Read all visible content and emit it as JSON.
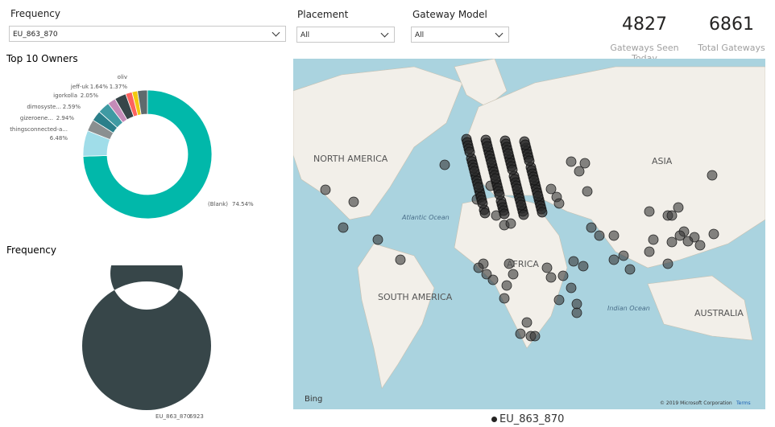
{
  "slicers": [
    {
      "title": "Frequency",
      "value": "EU_863_870"
    },
    {
      "title": "Placement",
      "value": "All"
    },
    {
      "title": "Gateway Model",
      "value": "All"
    }
  ],
  "cards": [
    {
      "value": 4827,
      "label": "Gateways Seen Today"
    },
    {
      "value": 6861,
      "label": "Total Gateways"
    }
  ],
  "owners": {
    "title": "Top 10 Owners",
    "type": "pie",
    "categories": [
      "(Blank)",
      "thingsconnected-a...",
      "gizeroene...",
      "dimosyste...",
      null,
      "igorkolla",
      null,
      "jeff-uk",
      "oliv",
      null
    ],
    "values": [
      74.54,
      6.48,
      2.94,
      2.59,
      3.0,
      2.05,
      2.9,
      1.64,
      1.37,
      2.49
    ],
    "value_labels": [
      "74.54%",
      "6.48%",
      "2.94%",
      "2.59%",
      null,
      "2.05%",
      null,
      "1.64%",
      "1.37%",
      null
    ],
    "colors": [
      "#01b8aa",
      "#a0dde9",
      "#8a8f90",
      "#2b7f8a",
      "#3f9aa3",
      "#c48bb8",
      "#374649",
      "#fd625e",
      "#f2c80f",
      "#5f6b6d"
    ]
  },
  "frequency": {
    "title": "Frequency",
    "type": "pie",
    "categories": [
      "EU_863_870"
    ],
    "values": [
      6923
    ],
    "colors": [
      "#374649"
    ]
  },
  "map": {
    "labels": [
      "NORTH AMERICA",
      "ASIA",
      "Atlantic Ocean",
      "AFRICA",
      "SOUTH AMERICA",
      "Indian Ocean",
      "AUSTRALIA"
    ],
    "provider": "Bing",
    "copyright": "© 2019 Microsoft Corporation",
    "terms": "Terms"
  }
}
